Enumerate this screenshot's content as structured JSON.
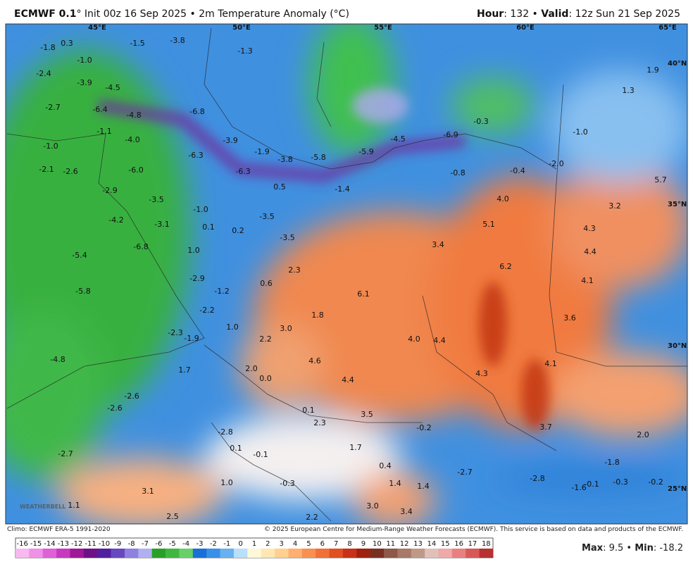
{
  "header": {
    "title_bold": "ECMWF 0.1",
    "title_rest": "° Init 00z 16 Sep 2025 • 2m Temperature Anomaly (°C)",
    "hour_label": "Hour",
    "hour_rest": ": 132 • ",
    "valid_label": "Valid",
    "valid_rest": ": 12z Sun 21 Sep 2025"
  },
  "map": {
    "lon_labels": [
      "45°E",
      "50°E",
      "55°E",
      "60°E",
      "65°E"
    ],
    "lat_labels": [
      "40°N",
      "35°N",
      "30°N",
      "25°N"
    ],
    "logo": "WEATHERBELL",
    "labels": [
      "-1.8",
      "0.3",
      "-1.0",
      "-1.5",
      "-3.8",
      "-1.3",
      "-2.4",
      "-3.9",
      "-4.5",
      "-2.7",
      "-6.4",
      "-4.8",
      "-6.8",
      "-1.1",
      "-4.0",
      "-3.9",
      "-1.0",
      "-6.3",
      "-1.9",
      "-3.8",
      "-5.8",
      "-5.9",
      "-4.5",
      "-6.9",
      "-0.3",
      "-1.0",
      "1.9",
      "1.3",
      "-2.1",
      "-2.6",
      "-6.0",
      "-6.3",
      "-0.8",
      "-0.4",
      "-2.0",
      "0.5",
      "-1.4",
      "5.7",
      "-2.9",
      "-3.5",
      "4.0",
      "3.2",
      "-1.0",
      "-4.2",
      "-3.1",
      "0.1",
      "0.2",
      "-3.5",
      "5.1",
      "4.3",
      "-3.5",
      "-6.8",
      "3.4",
      "1.0",
      "-5.4",
      "4.4",
      "6.2",
      "2.3",
      "-2.9",
      "0.6",
      "4.1",
      "-5.8",
      "-1.2",
      "6.1",
      "1.8",
      "-2.2",
      "3.6",
      "1.0",
      "3.0",
      "-2.3",
      "-1.9",
      "2.2",
      "4.0",
      "4.4",
      "-4.8",
      "4.6",
      "4.1",
      "2.0",
      "1.7",
      "0.0",
      "4.4",
      "4.3",
      "-2.6",
      "-2.6",
      "0.1",
      "3.5",
      "2.3",
      "-0.2",
      "3.7",
      "2.0",
      "-2.8",
      "1.7",
      "0.1",
      "-0.1",
      "-2.7",
      "0.4",
      "-1.8",
      "-2.7",
      "-2.8",
      "1.0",
      "-0.3",
      "1.4",
      "1.4",
      "-1.6",
      "-0.1",
      "-0.3",
      "-0.2",
      "3.1",
      "1.1",
      "3.0",
      "3.4",
      "2.5",
      "2.2"
    ]
  },
  "footer": {
    "climo": "Climo: ECMWF ERA-5 1991-2020",
    "copyright": "© 2025 European Centre for Medium-Range Weather Forecasts (ECMWF). This service is based on data and products of the ECMWF.",
    "max_label": "Max",
    "max_rest": ": 9.5 • ",
    "min_label": "Min",
    "min_rest": ": -18.2"
  },
  "colorbar": {
    "ticks": [
      -16,
      -15,
      -14,
      -13,
      -12,
      -11,
      -10,
      -9,
      -8,
      -7,
      -6,
      -5,
      -4,
      -3,
      -2,
      -1,
      0,
      1,
      2,
      3,
      4,
      5,
      6,
      7,
      8,
      9,
      10,
      11,
      12,
      13,
      14,
      15,
      16,
      17,
      18
    ],
    "colors": [
      "#f8b8f0",
      "#f090e8",
      "#e060d8",
      "#c838c0",
      "#a01898",
      "#701088",
      "#5020a0",
      "#6848c0",
      "#9080e0",
      "#b0b0f0",
      "#28a028",
      "#40b840",
      "#68d068",
      "#1870d8",
      "#3890e8",
      "#68b0f0",
      "#b8e0fa",
      "#fff8d8",
      "#ffe8b0",
      "#ffd090",
      "#ffb070",
      "#f89050",
      "#f07038",
      "#e05020",
      "#c83018",
      "#a02010",
      "#783020",
      "#905848",
      "#a87868",
      "#c09888",
      "#e0c0b8",
      "#f0a8a8",
      "#e88080",
      "#d85858",
      "#b83030"
    ]
  }
}
